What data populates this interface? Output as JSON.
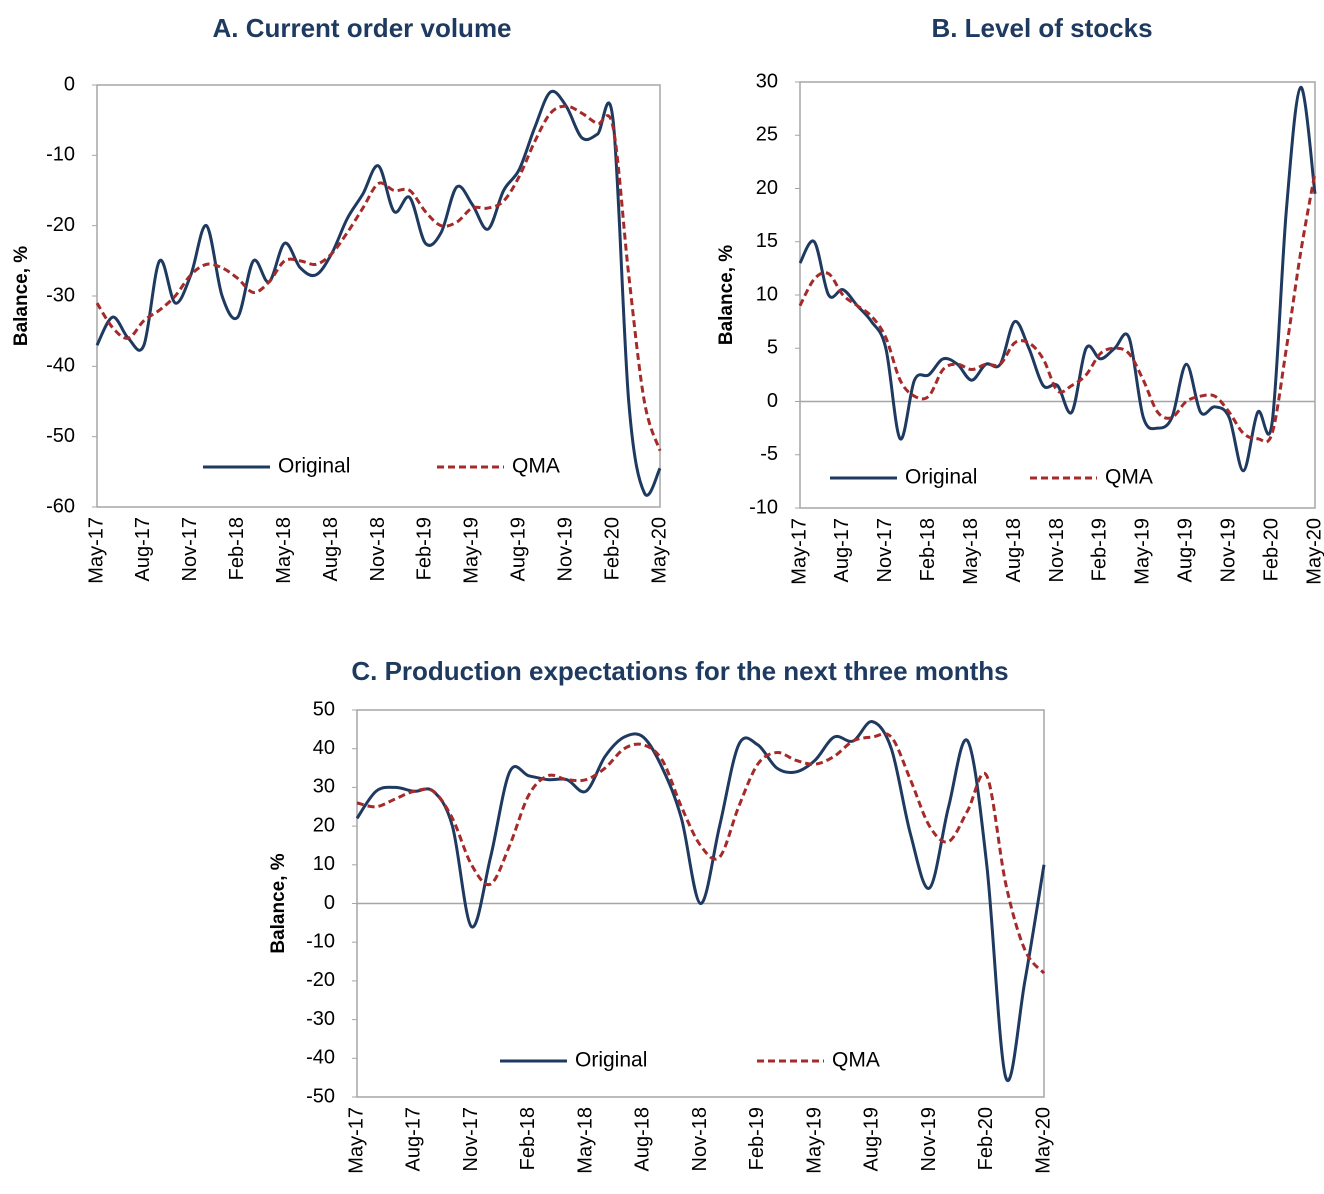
{
  "chart_data": [
    {
      "type": "line",
      "title": "A.  Current order volume",
      "y_label": "Balance, %",
      "categories": [
        "May-17",
        null,
        null,
        "Aug-17",
        null,
        null,
        "Nov-17",
        null,
        null,
        "Feb-18",
        null,
        null,
        "May-18",
        null,
        null,
        "Aug-18",
        null,
        null,
        "Nov-18",
        null,
        null,
        "Feb-19",
        null,
        null,
        "May-19",
        null,
        null,
        "Aug-19",
        null,
        null,
        "Nov-19",
        null,
        null,
        "Feb-20",
        null,
        null,
        "May-20"
      ],
      "ylim": [
        -60,
        0
      ],
      "yticks": [
        0,
        -10,
        -20,
        -30,
        -40,
        -50,
        -60
      ],
      "zero_line": false,
      "series": [
        {
          "name": "Original",
          "color": "#1f3a60",
          "dash": false,
          "values": [
            -37,
            -33,
            -36,
            -37,
            -25,
            -31,
            -27,
            -20,
            -30,
            -33,
            -25,
            -28,
            -22.5,
            -26,
            -27,
            -24,
            -19,
            -15.5,
            -11.5,
            -18,
            -16,
            -22.5,
            -21,
            -14.5,
            -17,
            -20.5,
            -15,
            -12,
            -6,
            -1,
            -3,
            -7.5,
            -7,
            -5,
            -45,
            -58,
            -54.5
          ]
        },
        {
          "name": "QMA",
          "color": "#a52a2a",
          "dash": true,
          "values": [
            -31,
            -34.5,
            -36,
            -33.5,
            -32,
            -30,
            -27,
            -25.5,
            -26,
            -27.5,
            -29.5,
            -28,
            -25,
            -25,
            -25.5,
            -24,
            -21,
            -17.5,
            -14,
            -15,
            -15,
            -18,
            -20,
            -19.5,
            -17.5,
            -17.5,
            -16.5,
            -13,
            -8,
            -4,
            -3,
            -4,
            -5.5,
            -6,
            -27,
            -45,
            -52
          ]
        }
      ]
    },
    {
      "type": "line",
      "title": "B.  Level of stocks",
      "y_label": "Balance, %",
      "categories": [
        "May-17",
        null,
        null,
        "Aug-17",
        null,
        null,
        "Nov-17",
        null,
        null,
        "Feb-18",
        null,
        null,
        "May-18",
        null,
        null,
        "Aug-18",
        null,
        null,
        "Nov-18",
        null,
        null,
        "Feb-19",
        null,
        null,
        "May-19",
        null,
        null,
        "Aug-19",
        null,
        null,
        "Nov-19",
        null,
        null,
        "Feb-20",
        null,
        null,
        "May-20"
      ],
      "ylim": [
        -10,
        30
      ],
      "yticks": [
        30,
        25,
        20,
        15,
        10,
        5,
        0,
        -5,
        -10
      ],
      "zero_line": true,
      "series": [
        {
          "name": "Original",
          "color": "#1f3a60",
          "dash": false,
          "values": [
            13,
            15,
            10,
            10.5,
            9,
            7.5,
            5,
            -3.5,
            2,
            2.5,
            4,
            3.5,
            2,
            3.5,
            3.5,
            7.5,
            5,
            1.5,
            1.5,
            -1,
            5,
            4,
            5,
            6,
            -1.5,
            -2.5,
            -1.5,
            3.5,
            -1,
            -0.5,
            -1.5,
            -6.5,
            -1,
            -2,
            18,
            29.5,
            19.5
          ]
        },
        {
          "name": "QMA",
          "color": "#a52a2a",
          "dash": true,
          "values": [
            9,
            11.5,
            12,
            10,
            9,
            8,
            6,
            2,
            0.5,
            0.5,
            3,
            3.5,
            3,
            3.5,
            3.5,
            5.5,
            5.5,
            4,
            1,
            1.5,
            2.5,
            4.5,
            5,
            4.5,
            2,
            -1,
            -1.5,
            0,
            0.5,
            0.5,
            -1,
            -3,
            -3.5,
            -3,
            5,
            14,
            21.5
          ]
        }
      ]
    },
    {
      "type": "line",
      "title": "C.  Production expectations for the next three months",
      "y_label": "Balance, %",
      "categories": [
        "May-17",
        null,
        null,
        "Aug-17",
        null,
        null,
        "Nov-17",
        null,
        null,
        "Feb-18",
        null,
        null,
        "May-18",
        null,
        null,
        "Aug-18",
        null,
        null,
        "Nov-18",
        null,
        null,
        "Feb-19",
        null,
        null,
        "May-19",
        null,
        null,
        "Aug-19",
        null,
        null,
        "Nov-19",
        null,
        null,
        "Feb-20",
        null,
        null,
        "May-20"
      ],
      "ylim": [
        -50,
        50
      ],
      "yticks": [
        50,
        40,
        30,
        20,
        10,
        0,
        -10,
        -20,
        -30,
        -40,
        -50
      ],
      "zero_line": true,
      "series": [
        {
          "name": "Original",
          "color": "#1f3a60",
          "dash": false,
          "values": [
            22,
            29,
            30,
            29,
            29,
            20,
            -6,
            12,
            34,
            33,
            32,
            32,
            29,
            38,
            43,
            43,
            35,
            22,
            0,
            20,
            41,
            41,
            35,
            34,
            37,
            43,
            42,
            47,
            40,
            18,
            4,
            25,
            42,
            10,
            -45,
            -20,
            10
          ]
        },
        {
          "name": "QMA",
          "color": "#a52a2a",
          "dash": true,
          "values": [
            26,
            25,
            27,
            29,
            29,
            22,
            10,
            5,
            15,
            28,
            33,
            32,
            32,
            35,
            40,
            41,
            37,
            25,
            15,
            12,
            25,
            36,
            39,
            37,
            36,
            38,
            42,
            43,
            43,
            32,
            20,
            16,
            24,
            33,
            5,
            -12,
            -18
          ]
        }
      ]
    }
  ]
}
